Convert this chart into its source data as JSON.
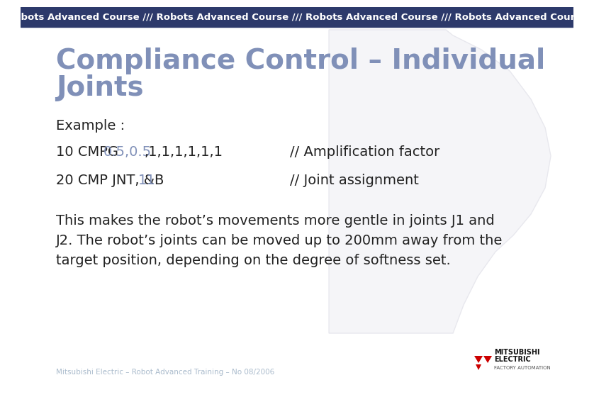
{
  "header_bg": "#2d3a6b",
  "header_text": "Robots Advanced Course /// Robots Advanced Course /// Robots Advanced Course /// Robots Advanced Course",
  "header_text_color": "#ffffff",
  "header_fontsize": 9.5,
  "body_bg": "#ffffff",
  "title_line1": "Compliance Control – Individual",
  "title_line2": "Joints",
  "title_fontsize": 28,
  "title_color": "#8090b8",
  "example_label": "Example :",
  "example_fontsize": 14,
  "line1_prefix": "10 CMPG ",
  "line1_highlight": "0.5,0.5",
  "line1_suffix": ",1,1,1,1,1,1",
  "line1_comment": "// Amplification factor",
  "line2_prefix": "20 CMP JNT, &B",
  "line2_highlight": "11",
  "line2_comment": "// Joint assignment",
  "code_fontsize": 14,
  "highlight_color": "#8090b8",
  "code_color": "#222222",
  "comment_color": "#222222",
  "body_text": "This makes the robot’s movements more gentle in joints J1 and\nJ2. The robot’s joints can be moved up to 200mm away from the\ntarget position, depending on the degree of softness set.",
  "body_fontsize": 14,
  "footer_text": "Mitsubishi Electric – Robot Advanced Training – No 08/2006",
  "footer_color": "#aabbcc",
  "footer_fontsize": 7.5,
  "mitsubishi_red": "#cc0000",
  "robot_head_color": "#f0f0f5",
  "robot_head_edge": "#e0e0e8"
}
